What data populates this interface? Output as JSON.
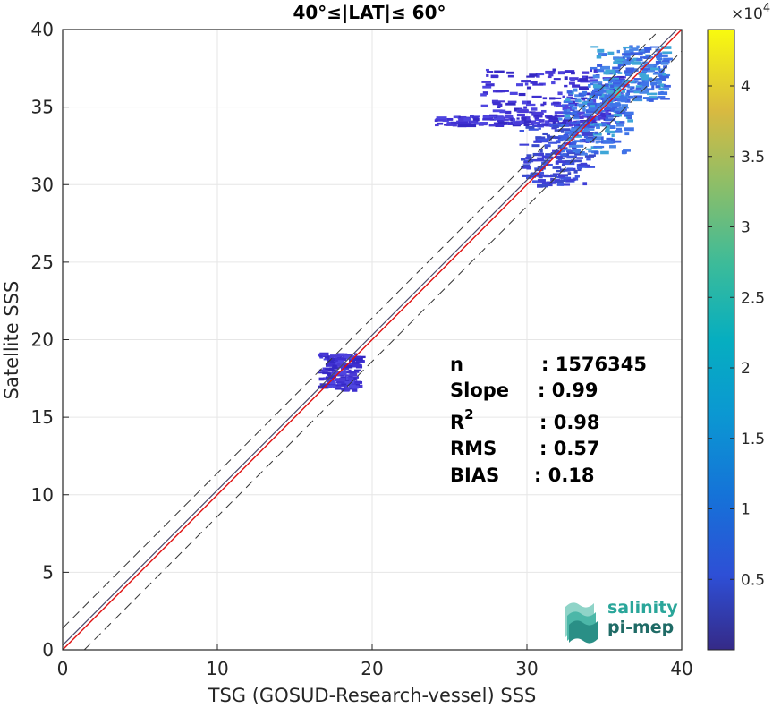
{
  "chart_data": {
    "type": "heatmap",
    "title": "40°≤|LAT|≤ 60°",
    "xlabel": "TSG (GOSUD-Research-vessel) SSS",
    "ylabel": "Satellite SSS",
    "xlim": [
      0,
      40
    ],
    "ylim": [
      0,
      40
    ],
    "xticks": [
      "0",
      "10",
      "20",
      "30",
      "40"
    ],
    "yticks": [
      "0",
      "5",
      "10",
      "15",
      "20",
      "25",
      "30",
      "35",
      "40"
    ],
    "grid": true,
    "colorbar": {
      "scale_label": "×10",
      "scale_exponent": "4",
      "range": [
        0,
        44000
      ],
      "ticks": [
        "0.5",
        "1",
        "1.5",
        "2",
        "2.5",
        "3",
        "3.5",
        "4"
      ],
      "tick_values": [
        5000,
        10000,
        15000,
        20000,
        25000,
        30000,
        35000,
        40000
      ],
      "colormap": "parula"
    },
    "lines": {
      "identity": {
        "color": "#4a4a6a",
        "style": "solid"
      },
      "regression": {
        "slope": 0.99,
        "intercept": -0.02,
        "color": "#e01010",
        "style": "solid"
      },
      "bounds": {
        "offset": 1.4,
        "color": "#333333",
        "style": "dashed"
      }
    },
    "density_clusters": [
      {
        "x_range": [
          16.5,
          19
        ],
        "y_range": [
          16.8,
          19.2
        ],
        "density": "low"
      },
      {
        "x_range": [
          24,
          35
        ],
        "y_range": [
          33.9,
          34.5
        ],
        "density": "low"
      },
      {
        "x_range": [
          27,
          36
        ],
        "y_range": [
          34.5,
          37.5
        ],
        "density": "low"
      },
      {
        "x_range": [
          29.5,
          34
        ],
        "y_range": [
          30,
          34
        ],
        "density": "medium"
      },
      {
        "x_range": [
          32,
          36.5
        ],
        "y_range": [
          32,
          36.5
        ],
        "density": "high"
      },
      {
        "x_range": [
          34,
          38.8
        ],
        "y_range": [
          35.5,
          39
        ],
        "density": "high"
      }
    ],
    "stats": [
      {
        "label": "n",
        "value": ": 1576345"
      },
      {
        "label": "Slope",
        "value": ": 0.99"
      },
      {
        "label": "R",
        "sup": "2",
        "value": ": 0.98"
      },
      {
        "label": "RMS",
        "value": ": 0.57"
      },
      {
        "label": "BIAS",
        "value": ": 0.18"
      }
    ]
  },
  "logo": {
    "line1": "salinity",
    "line2": "pi-mep",
    "color1": "#2aa69a",
    "color2": "#1f6b66"
  },
  "colors": {
    "axis": "#262626",
    "grid": "#e6e6e6",
    "low_density": "#3e2fd0",
    "high_density": "#3ea6d8"
  }
}
